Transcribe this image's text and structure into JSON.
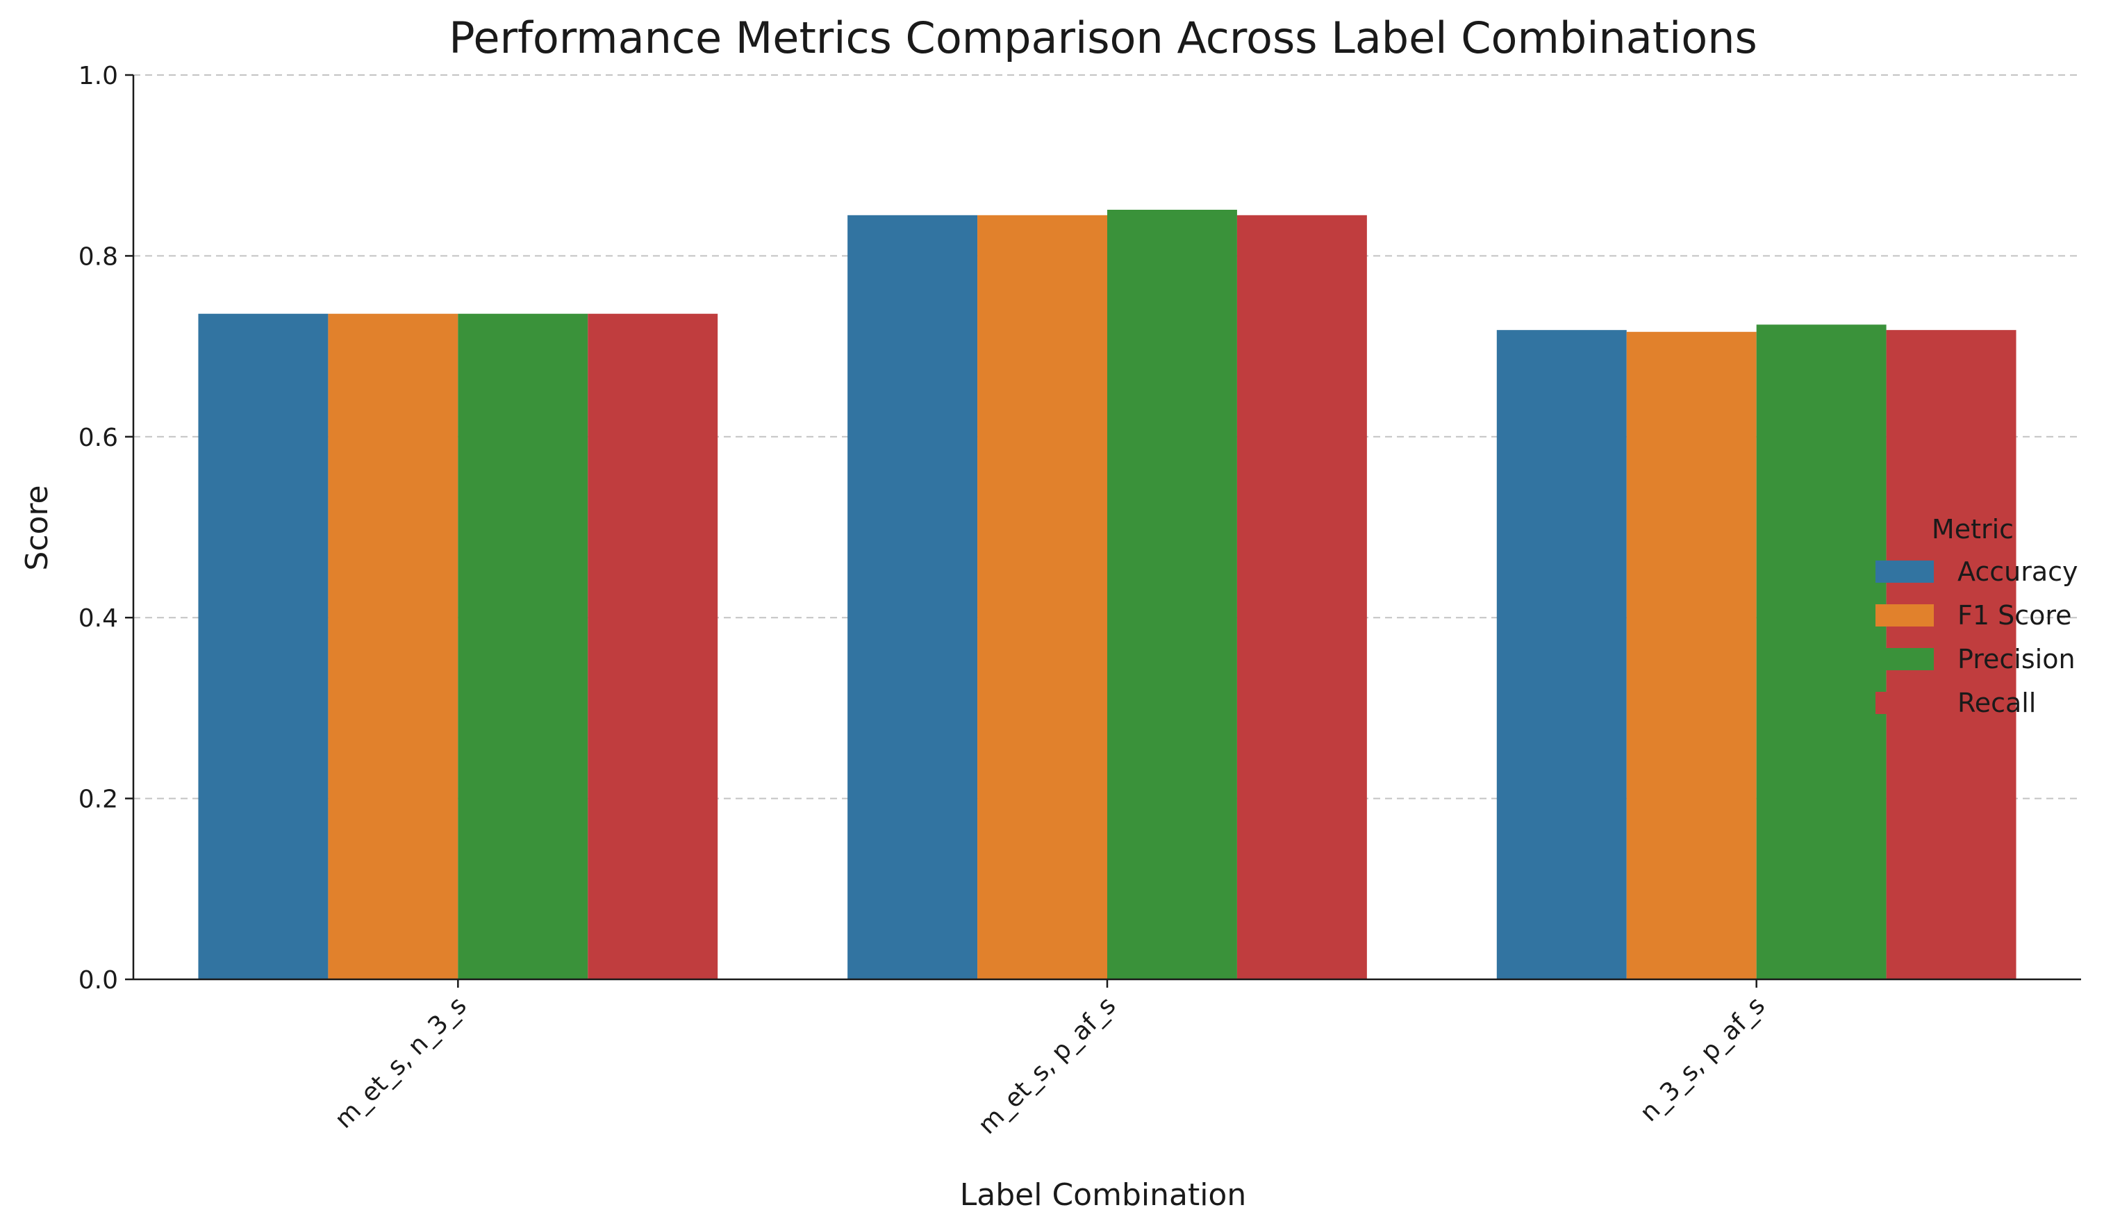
{
  "chart_data": {
    "type": "bar",
    "title": "Performance Metrics Comparison Across Label Combinations",
    "xlabel": "Label Combination",
    "ylabel": "Score",
    "ylim": [
      0,
      1.0
    ],
    "yticks": [
      "0.0",
      "0.2",
      "0.4",
      "0.6",
      "0.8",
      "1.0"
    ],
    "grid": "horizontal dashed",
    "categories": [
      "m_et_s, n_3_s",
      "m_et_s, p_af_s",
      "n_3_s, p_af_s"
    ],
    "legend_title": "Metric",
    "legend_position": "right",
    "series": [
      {
        "name": "Accuracy",
        "color": "#3274a1",
        "values": [
          0.736,
          0.845,
          0.718
        ]
      },
      {
        "name": "F1 Score",
        "color": "#e1812c",
        "values": [
          0.736,
          0.845,
          0.716
        ]
      },
      {
        "name": "Precision",
        "color": "#3a923a",
        "values": [
          0.736,
          0.851,
          0.724
        ]
      },
      {
        "name": "Recall",
        "color": "#c03d3e",
        "values": [
          0.736,
          0.845,
          0.718
        ]
      }
    ]
  }
}
